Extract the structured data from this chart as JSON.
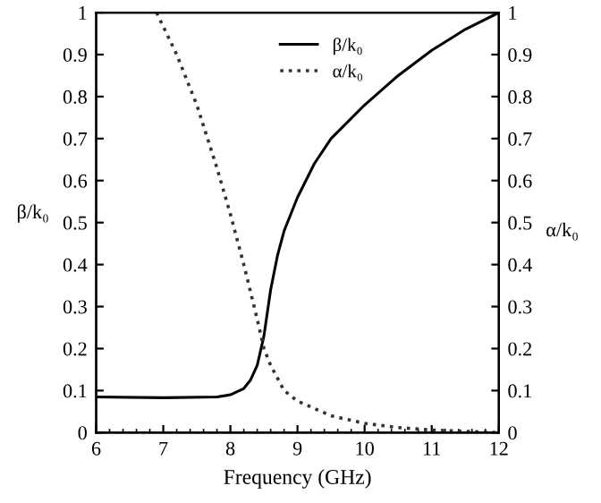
{
  "chart_data": {
    "type": "line",
    "xlabel": "Frequency (GHz)",
    "ylabel": "β/k₀",
    "y2label": "α/k₀",
    "xlim": [
      6,
      12
    ],
    "xticks": [
      6,
      7,
      8,
      9,
      10,
      11,
      12
    ],
    "ylim": [
      0,
      1
    ],
    "yticks": [
      0,
      0.1,
      0.2,
      0.3,
      0.4,
      0.5,
      0.6,
      0.7,
      0.8,
      0.9,
      1
    ],
    "y2lim": [
      0,
      1
    ],
    "y2ticks": [
      0,
      0.1,
      0.2,
      0.3,
      0.4,
      0.5,
      0.6,
      0.7,
      0.8,
      0.9,
      1
    ],
    "legend": "top",
    "grid": false,
    "series": [
      {
        "name": "β/k₀",
        "color": "#000000",
        "line_style": "solid",
        "x": [
          6,
          7,
          7.8,
          8.0,
          8.2,
          8.3,
          8.4,
          8.5,
          8.6,
          8.7,
          8.8,
          9.0,
          9.25,
          9.5,
          10,
          10.5,
          11,
          11.5,
          12
        ],
        "values": [
          0.085,
          0.083,
          0.085,
          0.09,
          0.105,
          0.125,
          0.16,
          0.23,
          0.34,
          0.42,
          0.48,
          0.56,
          0.64,
          0.7,
          0.78,
          0.85,
          0.91,
          0.96,
          1.0
        ]
      },
      {
        "name": "α/k₀",
        "color": "#333333",
        "line_style": "dotted",
        "axis": "y2",
        "x": [
          6.9,
          7.2,
          7.5,
          7.8,
          8.0,
          8.2,
          8.4,
          8.5,
          8.6,
          8.8,
          9.0,
          9.5,
          10,
          10.5,
          11,
          11.5,
          12
        ],
        "values": [
          1.0,
          0.9,
          0.78,
          0.63,
          0.52,
          0.4,
          0.27,
          0.2,
          0.16,
          0.1,
          0.075,
          0.04,
          0.022,
          0.012,
          0.006,
          0.003,
          0.0
        ]
      }
    ]
  }
}
